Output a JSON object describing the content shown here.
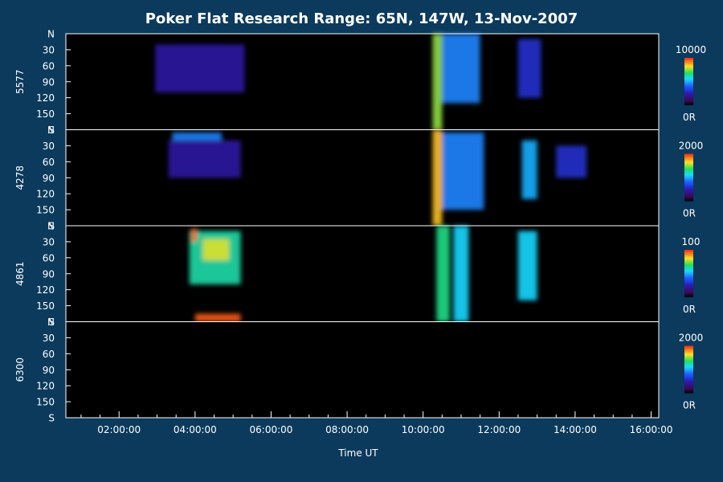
{
  "chart_data": {
    "type": "heatmap",
    "title": "Poker Flat Research Range: 65N, 147W, 13-Nov-2007",
    "xlabel": "Time UT",
    "x_range_hours": [
      0.6,
      16.2
    ],
    "x_ticks": [
      {
        "hour": 2,
        "label": "02:00:00"
      },
      {
        "hour": 4,
        "label": "04:00:00"
      },
      {
        "hour": 6,
        "label": "06:00:00"
      },
      {
        "hour": 8,
        "label": "08:00:00"
      },
      {
        "hour": 10,
        "label": "10:00:00"
      },
      {
        "hour": 12,
        "label": "12:00:00"
      },
      {
        "hour": 14,
        "label": "14:00:00"
      },
      {
        "hour": 16,
        "label": "16:00:00"
      }
    ],
    "y_tick_labels": [
      "N",
      "30",
      "60",
      "90",
      "120",
      "150",
      "S"
    ],
    "y_range_deg": [
      0,
      180
    ],
    "colorbar_min_label": "0R",
    "panels": [
      {
        "name": "5577",
        "max_label": "10000",
        "features": [
          {
            "start": 2.95,
            "end": 5.3,
            "elev_top": 20,
            "elev_bottom": 110,
            "level": 0.22
          },
          {
            "start": 10.25,
            "end": 10.5,
            "elev_top": 0,
            "elev_bottom": 180,
            "level": 0.75
          },
          {
            "start": 10.5,
            "end": 11.5,
            "elev_top": 0,
            "elev_bottom": 130,
            "level": 0.45
          },
          {
            "start": 12.5,
            "end": 13.1,
            "elev_top": 10,
            "elev_bottom": 120,
            "level": 0.3
          }
        ]
      },
      {
        "name": "4278",
        "max_label": "2000",
        "features": [
          {
            "start": 3.4,
            "end": 4.7,
            "elev_top": 5,
            "elev_bottom": 20,
            "level": 0.45
          },
          {
            "start": 3.3,
            "end": 5.2,
            "elev_top": 20,
            "elev_bottom": 90,
            "level": 0.22
          },
          {
            "start": 10.25,
            "end": 10.5,
            "elev_top": 0,
            "elev_bottom": 180,
            "level": 0.85
          },
          {
            "start": 10.5,
            "end": 11.6,
            "elev_top": 5,
            "elev_bottom": 150,
            "level": 0.45
          },
          {
            "start": 12.6,
            "end": 13.0,
            "elev_top": 20,
            "elev_bottom": 130,
            "level": 0.5
          },
          {
            "start": 13.5,
            "end": 14.3,
            "elev_top": 30,
            "elev_bottom": 90,
            "level": 0.3
          }
        ]
      },
      {
        "name": "4861",
        "max_label": "100",
        "features": [
          {
            "start": 3.85,
            "end": 5.2,
            "elev_top": 10,
            "elev_bottom": 110,
            "level": 0.62
          },
          {
            "start": 4.2,
            "end": 4.9,
            "elev_top": 25,
            "elev_bottom": 65,
            "level": 0.8
          },
          {
            "start": 3.9,
            "end": 4.05,
            "elev_top": 5,
            "elev_bottom": 30,
            "level": 0.95
          },
          {
            "start": 4.0,
            "end": 5.2,
            "elev_top": 165,
            "elev_bottom": 180,
            "level": 0.95
          },
          {
            "start": 10.35,
            "end": 10.7,
            "elev_top": 0,
            "elev_bottom": 180,
            "level": 0.65
          },
          {
            "start": 10.8,
            "end": 11.2,
            "elev_top": 0,
            "elev_bottom": 180,
            "level": 0.55
          },
          {
            "start": 12.5,
            "end": 13.0,
            "elev_top": 10,
            "elev_bottom": 140,
            "level": 0.55
          }
        ]
      },
      {
        "name": "6300",
        "max_label": "2000",
        "features": []
      }
    ]
  }
}
